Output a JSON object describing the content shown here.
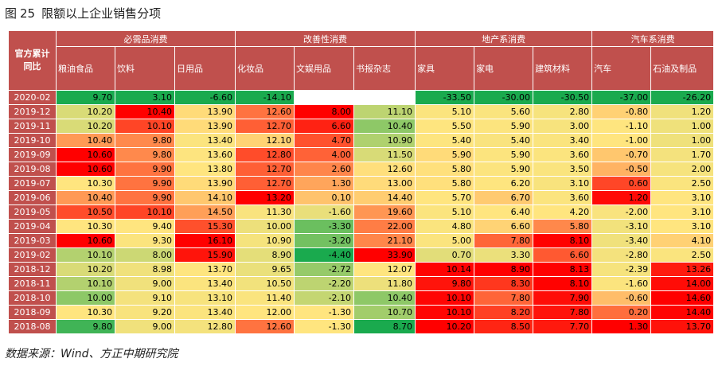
{
  "figure": {
    "label": "图",
    "number": "25",
    "title": "限额以上企业销售分项"
  },
  "source": "数据来源：Wind、方正中期研究院",
  "chart_data": {
    "type": "table",
    "corner_label": [
      "官方累计",
      "同比"
    ],
    "groups": [
      {
        "name": "必需品消费",
        "span": 3
      },
      {
        "name": "改善性消费",
        "span": 3
      },
      {
        "name": "地产系消费",
        "span": 3
      },
      {
        "name": "汽车系消费",
        "span": 2
      }
    ],
    "columns": [
      "粮油食品",
      "饮料",
      "日用品",
      "化妆品",
      "文娱用品",
      "书报杂志",
      "家具",
      "家电",
      "建筑材料",
      "汽车",
      "石油及制品"
    ],
    "rows": [
      {
        "date": "2020-02",
        "values": [
          "9.70",
          "3.10",
          "-6.60",
          "-14.10",
          "",
          "",
          "-33.50",
          "-30.00",
          "-30.50",
          "-37.00",
          "-26.20"
        ]
      },
      {
        "date": "2019-12",
        "values": [
          "10.20",
          "10.40",
          "13.90",
          "12.60",
          "8.00",
          "11.10",
          "5.10",
          "5.60",
          "2.80",
          "-0.80",
          "1.20"
        ]
      },
      {
        "date": "2019-11",
        "values": [
          "10.20",
          "10.10",
          "13.90",
          "12.70",
          "6.60",
          "10.40",
          "5.50",
          "5.90",
          "3.00",
          "-1.10",
          "1.00"
        ]
      },
      {
        "date": "2019-10",
        "values": [
          "10.40",
          "9.80",
          "13.40",
          "12.10",
          "4.70",
          "10.90",
          "5.40",
          "5.40",
          "3.40",
          "-1.00",
          "1.00"
        ]
      },
      {
        "date": "2019-09",
        "values": [
          "10.60",
          "9.80",
          "13.60",
          "12.80",
          "4.00",
          "11.50",
          "5.90",
          "5.90",
          "3.60",
          "-0.70",
          "1.70"
        ]
      },
      {
        "date": "2019-08",
        "values": [
          "10.60",
          "9.90",
          "13.80",
          "12.70",
          "2.60",
          "12.60",
          "5.80",
          "5.90",
          "3.50",
          "-0.50",
          "2.00"
        ]
      },
      {
        "date": "2019-07",
        "values": [
          "10.30",
          "9.90",
          "13.90",
          "12.70",
          "1.30",
          "13.00",
          "5.80",
          "6.20",
          "3.10",
          "0.60",
          "2.50"
        ]
      },
      {
        "date": "2019-06",
        "values": [
          "10.40",
          "9.90",
          "14.10",
          "13.20",
          "0.10",
          "14.40",
          "5.70",
          "6.70",
          "3.60",
          "1.20",
          "3.10"
        ]
      },
      {
        "date": "2019-05",
        "values": [
          "10.50",
          "10.10",
          "14.50",
          "11.30",
          "-1.60",
          "19.60",
          "5.10",
          "6.40",
          "4.20",
          "-2.00",
          "3.10"
        ]
      },
      {
        "date": "2019-04",
        "values": [
          "10.30",
          "9.40",
          "15.30",
          "10.00",
          "-3.30",
          "22.00",
          "4.80",
          "6.60",
          "5.80",
          "-3.10",
          "3.10"
        ]
      },
      {
        "date": "2019-03",
        "values": [
          "10.60",
          "9.30",
          "16.10",
          "10.90",
          "-3.20",
          "21.10",
          "5.00",
          "7.80",
          "8.10",
          "-3.40",
          "4.10"
        ]
      },
      {
        "date": "2019-02",
        "values": [
          "10.10",
          "8.00",
          "15.90",
          "8.90",
          "-4.40",
          "33.90",
          "0.70",
          "3.30",
          "6.60",
          "-2.80",
          "2.50"
        ]
      },
      {
        "date": "2018-12",
        "values": [
          "10.20",
          "8.98",
          "13.70",
          "9.65",
          "-2.72",
          "12.07",
          "10.14",
          "8.90",
          "8.13",
          "-2.39",
          "13.26"
        ]
      },
      {
        "date": "2018-11",
        "values": [
          "10.10",
          "9.00",
          "13.40",
          "10.50",
          "-2.20",
          "11.80",
          "9.80",
          "8.30",
          "8.10",
          "-1.60",
          "14.00"
        ]
      },
      {
        "date": "2018-10",
        "values": [
          "10.00",
          "9.10",
          "13.10",
          "11.40",
          "-2.10",
          "10.40",
          "10.10",
          "7.80",
          "7.90",
          "-0.60",
          "14.60"
        ]
      },
      {
        "date": "2018-09",
        "values": [
          "10.30",
          "9.20",
          "13.40",
          "12.00",
          "-1.30",
          "10.70",
          "10.10",
          "8.20",
          "7.80",
          "0.20",
          "14.40"
        ]
      },
      {
        "date": "2018-08",
        "values": [
          "9.80",
          "9.00",
          "12.80",
          "12.60",
          "-1.30",
          "8.70",
          "10.20",
          "8.50",
          "7.70",
          "1.30",
          "13.70"
        ]
      }
    ],
    "color_scale": {
      "low": "#1aaa4e",
      "mid": "#ffe57f",
      "high": "#ff0000",
      "empty": "#ffffff"
    }
  }
}
